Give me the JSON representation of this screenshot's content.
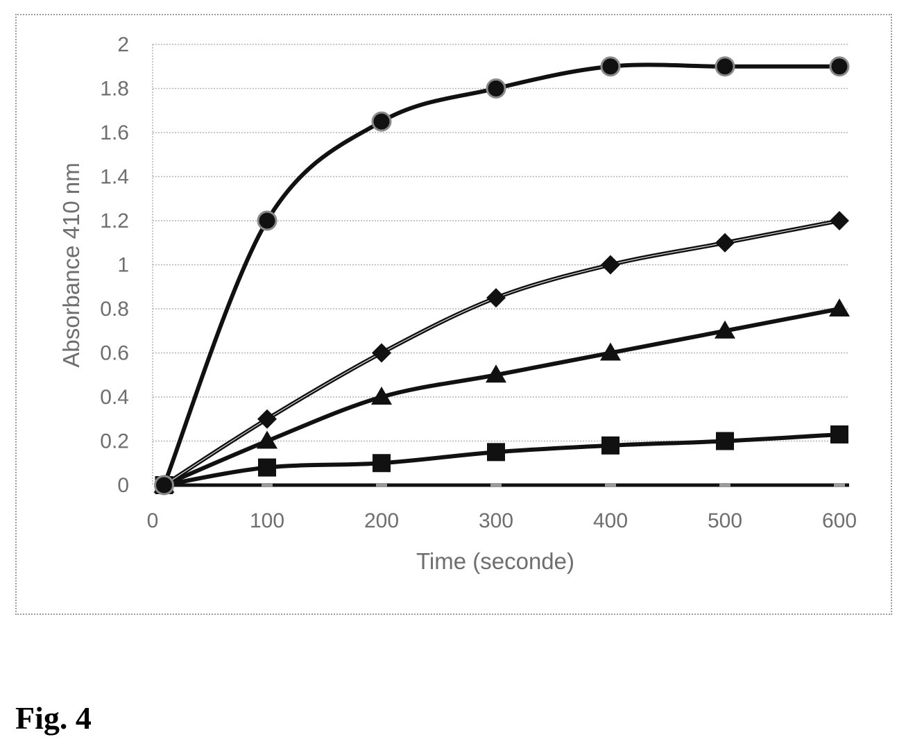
{
  "chart_data": {
    "type": "line",
    "title": "",
    "xlabel": "Time (seconde)",
    "ylabel": "Absorbance 410 nm",
    "xlim": [
      0,
      600
    ],
    "ylim": [
      0,
      2
    ],
    "xticks": [
      0,
      100,
      200,
      300,
      400,
      500,
      600
    ],
    "yticks": [
      0,
      0.2,
      0.4,
      0.6,
      0.8,
      1,
      1.2,
      1.4,
      1.6,
      1.8,
      2
    ],
    "ytick_labels": [
      "0",
      "0.2",
      "0.4",
      "0.6",
      "0.8",
      "1",
      "1.2",
      "1.4",
      "1.6",
      "1.8",
      "2"
    ],
    "grid": "horizontal dotted",
    "legend": "none",
    "series": [
      {
        "marker": "circle",
        "x": [
          10,
          100,
          200,
          300,
          400,
          500,
          600
        ],
        "y": [
          0,
          1.2,
          1.65,
          1.8,
          1.9,
          1.9,
          1.9
        ]
      },
      {
        "marker": "diamond",
        "x": [
          10,
          100,
          200,
          300,
          400,
          500,
          600
        ],
        "y": [
          0,
          0.3,
          0.6,
          0.85,
          1.0,
          1.1,
          1.2
        ]
      },
      {
        "marker": "triangle",
        "x": [
          10,
          100,
          200,
          300,
          400,
          500,
          600
        ],
        "y": [
          0,
          0.2,
          0.4,
          0.5,
          0.6,
          0.7,
          0.8
        ]
      },
      {
        "marker": "square",
        "x": [
          10,
          100,
          200,
          300,
          400,
          500,
          600
        ],
        "y": [
          0,
          0.08,
          0.1,
          0.15,
          0.18,
          0.2,
          0.23
        ]
      },
      {
        "marker": "dash",
        "x": [
          10,
          100,
          200,
          300,
          400,
          500,
          600
        ],
        "y": [
          0,
          0,
          0,
          0,
          0,
          0,
          0
        ]
      }
    ]
  },
  "caption": "Fig. 4"
}
